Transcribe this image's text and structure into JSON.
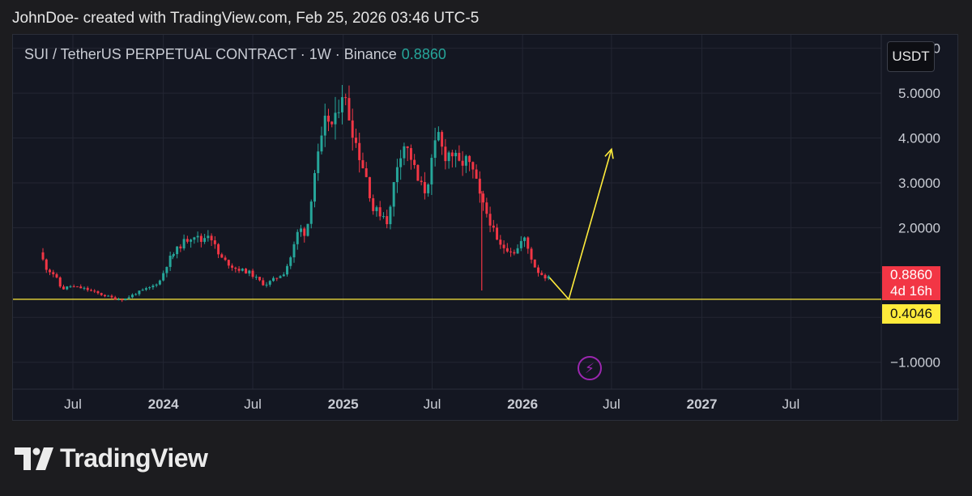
{
  "header": {
    "watermark": "JohnDoe- created with TradingView.com, Feb 25, 2026 03:46 UTC-5"
  },
  "legend": {
    "symbol": "SUI / TetherUS PERPETUAL CONTRACT · 1W · Binance",
    "price": "0.8860"
  },
  "currency_label": "USDT",
  "last_price_tag": {
    "price": "0.8860",
    "countdown": "4d 16h"
  },
  "level_tag": "0.4046",
  "alert_icon": "lightning-icon",
  "brand": {
    "name": "TradingView",
    "logo_icon": "tradingview-logo-icon"
  },
  "colors": {
    "up": "#26a69a",
    "down": "#f23645",
    "projection": "#ffeb3b",
    "level": "#ffeb3b",
    "alert": "#9c27b0"
  },
  "chart_data": {
    "type": "candlestick",
    "interval": "1W",
    "grid": true,
    "y_axis": {
      "ticks": [
        6,
        5,
        4,
        3,
        2,
        -1
      ],
      "tick_labels": [
        "6.0000",
        "5.0000",
        "4.0000",
        "3.0000",
        "2.0000",
        "−1.0000"
      ],
      "range": [
        -1.6,
        6.3
      ]
    },
    "x_axis": {
      "ticks": [
        "2023-07-01",
        "2024-01-01",
        "2024-07-01",
        "2025-01-01",
        "2025-07-01",
        "2026-01-01",
        "2026-07-01",
        "2027-01-01",
        "2027-07-01"
      ],
      "tick_labels": [
        "Jul",
        "2024",
        "Jul",
        "2025",
        "Jul",
        "2026",
        "Jul",
        "2027",
        "Jul"
      ],
      "bold": [
        false,
        true,
        false,
        true,
        false,
        true,
        false,
        true,
        false
      ],
      "range": [
        "2023-03-01",
        "2028-01-01"
      ]
    },
    "horizontal_line": {
      "value": 0.4046
    },
    "price_path": [
      [
        "2023-05-01",
        1.45
      ],
      [
        "2023-05-15",
        1.1
      ],
      [
        "2023-06-01",
        0.95
      ],
      [
        "2023-06-15",
        0.62
      ],
      [
        "2023-07-01",
        0.7
      ],
      [
        "2023-08-01",
        0.64
      ],
      [
        "2023-09-01",
        0.52
      ],
      [
        "2023-10-01",
        0.42
      ],
      [
        "2023-10-20",
        0.4
      ],
      [
        "2023-11-15",
        0.55
      ],
      [
        "2023-12-15",
        0.68
      ],
      [
        "2024-01-01",
        0.82
      ],
      [
        "2024-01-20",
        1.3
      ],
      [
        "2024-02-15",
        1.65
      ],
      [
        "2024-03-10",
        1.85
      ],
      [
        "2024-03-25",
        1.7
      ],
      [
        "2024-04-10",
        1.9
      ],
      [
        "2024-05-01",
        1.35
      ],
      [
        "2024-06-01",
        1.1
      ],
      [
        "2024-07-01",
        1.0
      ],
      [
        "2024-08-01",
        0.72
      ],
      [
        "2024-08-20",
        0.85
      ],
      [
        "2024-09-10",
        1.0
      ],
      [
        "2024-09-25",
        1.4
      ],
      [
        "2024-10-10",
        2.0
      ],
      [
        "2024-10-25",
        1.85
      ],
      [
        "2024-11-10",
        3.2
      ],
      [
        "2024-11-25",
        3.9
      ],
      [
        "2024-12-05",
        4.5
      ],
      [
        "2024-12-20",
        4.2
      ],
      [
        "2025-01-05",
        5.1
      ],
      [
        "2025-01-20",
        4.5
      ],
      [
        "2025-02-05",
        3.8
      ],
      [
        "2025-02-25",
        3.1
      ],
      [
        "2025-03-10",
        2.4
      ],
      [
        "2025-03-30",
        2.3
      ],
      [
        "2025-04-10",
        2.1
      ],
      [
        "2025-04-25",
        3.3
      ],
      [
        "2025-05-10",
        3.9
      ],
      [
        "2025-05-25",
        3.6
      ],
      [
        "2025-06-10",
        3.0
      ],
      [
        "2025-06-25",
        2.8
      ],
      [
        "2025-07-10",
        3.6
      ],
      [
        "2025-07-20",
        4.1
      ],
      [
        "2025-08-01",
        3.6
      ],
      [
        "2025-08-15",
        3.7
      ],
      [
        "2025-09-01",
        3.4
      ],
      [
        "2025-09-15",
        3.5
      ],
      [
        "2025-10-01",
        3.2
      ],
      [
        "2025-10-15",
        2.6
      ],
      [
        "2025-11-01",
        2.2
      ],
      [
        "2025-11-20",
        1.6
      ],
      [
        "2025-12-05",
        1.55
      ],
      [
        "2025-12-25",
        1.45
      ],
      [
        "2026-01-10",
        1.8
      ],
      [
        "2026-01-25",
        1.35
      ],
      [
        "2026-02-05",
        1.05
      ],
      [
        "2026-02-25",
        0.886
      ]
    ],
    "spikes": [
      {
        "date": "2025-10-10",
        "low": 0.6
      },
      {
        "date": "2024-01-20",
        "high": 1.4
      }
    ],
    "projection": [
      [
        "2026-02-25",
        0.886
      ],
      [
        "2026-04-05",
        0.4046
      ],
      [
        "2026-07-01",
        3.75
      ]
    ]
  }
}
